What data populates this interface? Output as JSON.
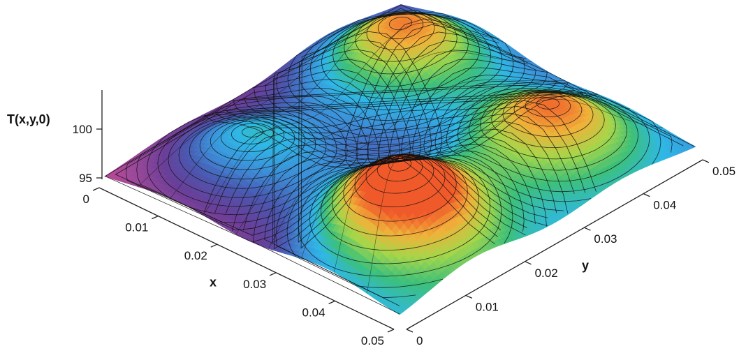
{
  "chart_data": {
    "type": "surface",
    "zlabel": "T(x,y,0)",
    "xlabel": "x",
    "ylabel": "y",
    "xlim": [
      0,
      0.05
    ],
    "ylim": [
      0,
      0.05
    ],
    "zlim": [
      93,
      104
    ],
    "x_ticks": [
      "0",
      "0.01",
      "0.02",
      "0.03",
      "0.04",
      "0.05"
    ],
    "y_ticks": [
      "0",
      "0.01",
      "0.02",
      "0.03",
      "0.04",
      "0.05"
    ],
    "z_ticks": [
      "95",
      "100"
    ],
    "base_temperature": 95,
    "peaks": [
      {
        "x": 0.0125,
        "y": 0.0375,
        "peak_T": 101.5,
        "width": 0.0075
      },
      {
        "x": 0.0125,
        "y": 0.0125,
        "peak_T": 99.0,
        "width": 0.007
      },
      {
        "x": 0.0375,
        "y": 0.0375,
        "peak_T": 100.5,
        "width": 0.0075
      },
      {
        "x": 0.0375,
        "y": 0.0125,
        "peak_T": 103.0,
        "width": 0.0075
      }
    ],
    "colormap": [
      "#e0458f",
      "#a24a9a",
      "#6a3e98",
      "#4a58b0",
      "#3d8ed8",
      "#2fb8e6",
      "#3cc07a",
      "#a6d64a",
      "#f0b23a",
      "#f05a2a"
    ],
    "grid": false,
    "contours": true
  }
}
